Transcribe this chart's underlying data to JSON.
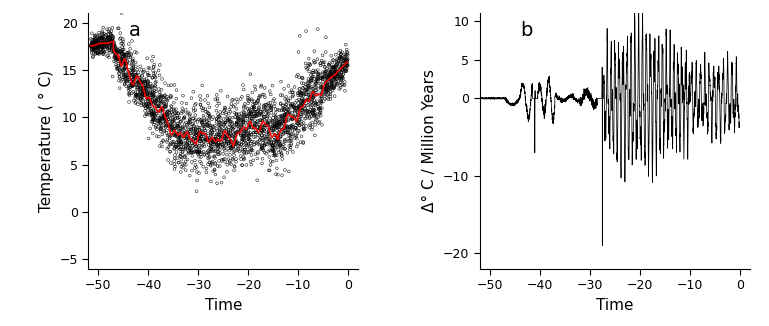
{
  "panel_a": {
    "label": "a",
    "xlabel": "Time",
    "ylabel": "Temperature ( ° C)",
    "xlim": [
      -52,
      2
    ],
    "ylim": [
      -6,
      21
    ],
    "xticks": [
      -50,
      -40,
      -30,
      -20,
      -10,
      0
    ],
    "yticks": [
      -5,
      0,
      5,
      10,
      15,
      20
    ],
    "scatter_color": "black",
    "scatter_facecolor": "none",
    "line_color": "red"
  },
  "panel_b": {
    "label": "b",
    "xlabel": "Time",
    "ylabel": "Δ° C / Million Years",
    "xlim": [
      -52,
      2
    ],
    "ylim": [
      -22,
      11
    ],
    "xticks": [
      -50,
      -40,
      -30,
      -20,
      -10,
      0
    ],
    "yticks": [
      -20,
      -10,
      0,
      5,
      10
    ],
    "line_color": "black"
  },
  "bg_color": "white",
  "tick_label_fontsize": 9,
  "axis_label_fontsize": 11,
  "panel_label_fontsize": 14
}
